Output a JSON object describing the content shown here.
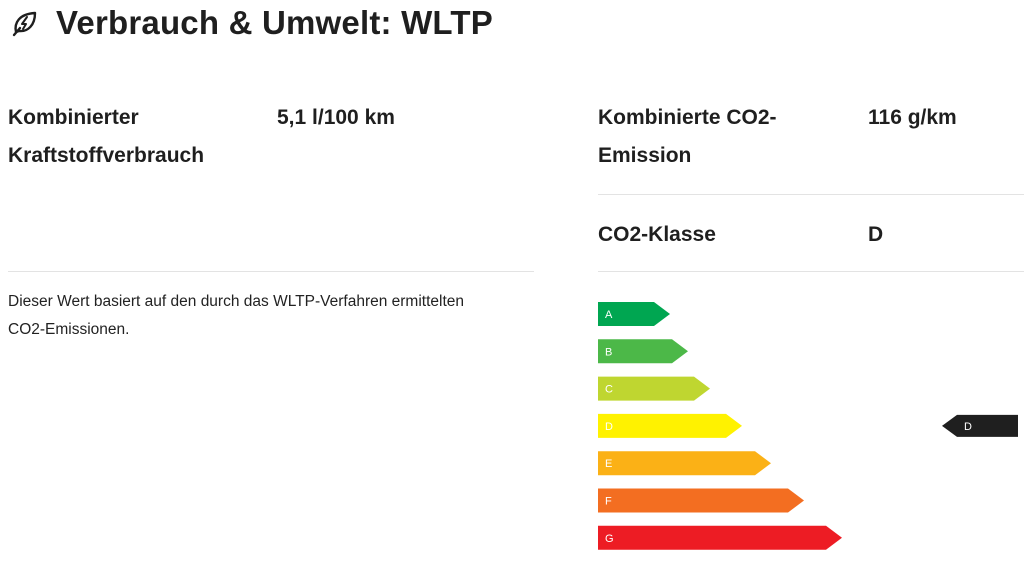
{
  "header": {
    "title": "Verbrauch & Umwelt: WLTP",
    "icon": "leaf-bolt-icon"
  },
  "consumption": {
    "label_line1": "Kombinierter",
    "label_line2": "Kraftstoffverbrauch",
    "value": "5,1 l/100 km",
    "note_line1": "Dieser Wert basiert auf den durch das WLTP-Verfahren ermittelten",
    "note_line2": "CO2-Emissionen."
  },
  "emission": {
    "label_line1": "Kombinierte CO2-",
    "label_line2": "Emission",
    "value": "116 g/km"
  },
  "co2_class": {
    "label": "CO2-Klasse",
    "value": "D"
  },
  "efficiency_scale": {
    "classes": [
      {
        "letter": "A",
        "color": "#00a651"
      },
      {
        "letter": "B",
        "color": "#4cb848"
      },
      {
        "letter": "C",
        "color": "#bfd630"
      },
      {
        "letter": "D",
        "color": "#fff200"
      },
      {
        "letter": "E",
        "color": "#fbb116"
      },
      {
        "letter": "F",
        "color": "#f36e21"
      },
      {
        "letter": "G",
        "color": "#ed1c24"
      }
    ],
    "indicator": {
      "letter": "D",
      "color": "#1f1f1f"
    }
  }
}
